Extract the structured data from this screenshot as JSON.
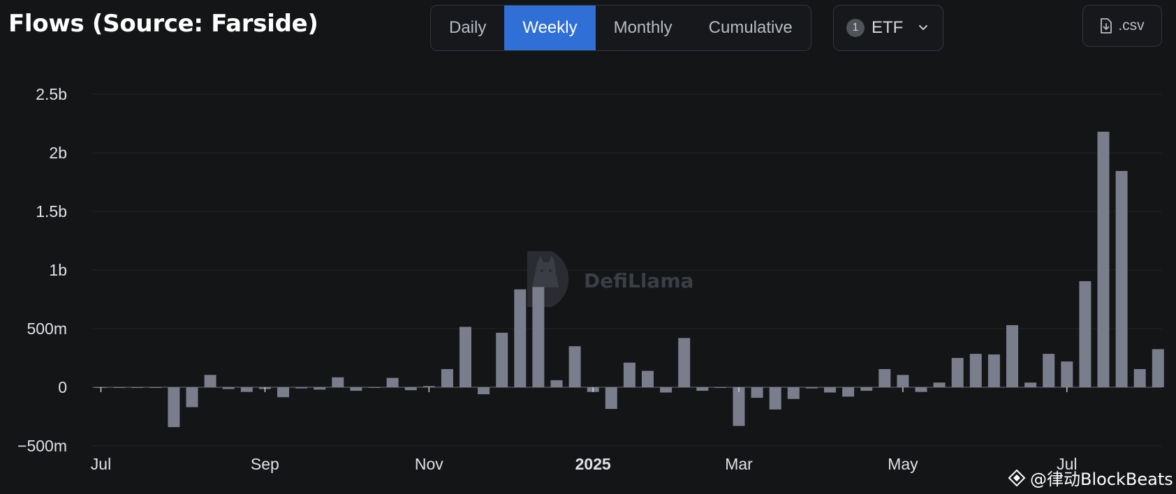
{
  "header": {
    "title": "Flows (Source: Farside)",
    "tabs": [
      {
        "label": "Daily",
        "active": false
      },
      {
        "label": "Weekly",
        "active": true
      },
      {
        "label": "Monthly",
        "active": false
      },
      {
        "label": "Cumulative",
        "active": false
      }
    ],
    "etf_filter": {
      "count": "1",
      "label": "ETF"
    },
    "csv_label": ".csv"
  },
  "watermark": {
    "text": "DefiLlama"
  },
  "credit": {
    "text": "@律动BlockBeats"
  },
  "colors": {
    "background": "#141517",
    "bar": "#7a7d8c",
    "active_tab": "#2f6fd6"
  },
  "chart_data": {
    "type": "bar",
    "y_ticks": [
      "2.5b",
      "2b",
      "1.5b",
      "1b",
      "500m",
      "0",
      "−500m"
    ],
    "y_tick_values": [
      2500,
      2000,
      1500,
      1000,
      500,
      0,
      -500
    ],
    "x_tick_labels": [
      {
        "label": "Jul",
        "index": 0,
        "bold": false
      },
      {
        "label": "Sep",
        "index": 9,
        "bold": false
      },
      {
        "label": "Nov",
        "index": 18,
        "bold": false
      },
      {
        "label": "2025",
        "index": 27,
        "bold": true
      },
      {
        "label": "Mar",
        "index": 35,
        "bold": false
      },
      {
        "label": "May",
        "index": 44,
        "bold": false
      },
      {
        "label": "Jul",
        "index": 53,
        "bold": false
      }
    ],
    "ylim": [
      -500,
      2500
    ],
    "unit": "millions USD",
    "values": [
      0,
      0,
      0,
      0,
      -340,
      -170,
      105,
      -15,
      -40,
      -15,
      -85,
      -10,
      -20,
      85,
      -30,
      0,
      80,
      -25,
      10,
      155,
      515,
      -60,
      465,
      835,
      855,
      60,
      350,
      -40,
      -185,
      210,
      140,
      -45,
      420,
      -30,
      0,
      -330,
      -90,
      -190,
      -100,
      -10,
      -45,
      -80,
      -30,
      155,
      105,
      -40,
      40,
      250,
      285,
      280,
      530,
      40,
      285,
      220,
      905,
      2180,
      1845,
      155,
      325
    ]
  }
}
